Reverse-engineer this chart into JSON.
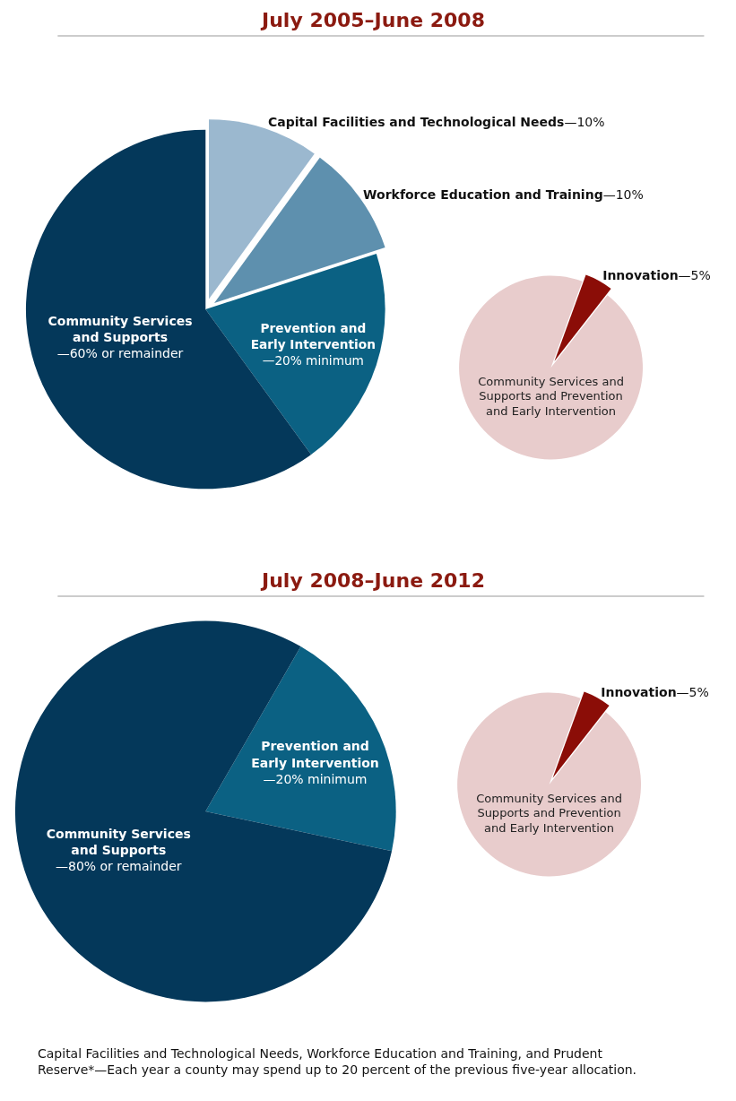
{
  "chart_data": [
    {
      "type": "pie",
      "title": "July 2005–June 2008",
      "categories": [
        "Capital Facilities and Technological Needs",
        "Workforce Education and Training",
        "Prevention and Early Intervention",
        "Community Services and Supports"
      ],
      "values": [
        10,
        10,
        20,
        60
      ],
      "colors": [
        "#9bb8cf",
        "#5e90ae",
        "#0b6183",
        "#04385a"
      ],
      "value_labels": [
        "—10%",
        "—10%",
        "—20% minimum",
        "—60% or remainder"
      ]
    },
    {
      "type": "pie",
      "categories": [
        "Innovation",
        "Community Services and Supports and Prevention and Early Intervention"
      ],
      "values": [
        5,
        95
      ],
      "colors": [
        "#8b0d07",
        "#e8cccc"
      ],
      "value_labels": [
        "—5%",
        null
      ]
    },
    {
      "type": "pie",
      "title": "July 2008–June 2012",
      "categories": [
        "Prevention and Early Intervention",
        "Community Services and Supports"
      ],
      "values": [
        20,
        80
      ],
      "colors": [
        "#0b6183",
        "#04385a"
      ],
      "value_labels": [
        "—20% minimum",
        "—80% or remainder"
      ],
      "annotations": [
        "Capital Facilities and Technological Needs, Workforce Education and Training, and Prudent Reserve*—Each year a county may spend up to 20 percent of the previous five-year allocation."
      ]
    },
    {
      "type": "pie",
      "categories": [
        "Innovation",
        "Community Services and Supports and Prevention and Early Intervention"
      ],
      "values": [
        5,
        95
      ],
      "colors": [
        "#8b0d07",
        "#e8cccc"
      ],
      "value_labels": [
        "—5%",
        null
      ]
    }
  ]
}
